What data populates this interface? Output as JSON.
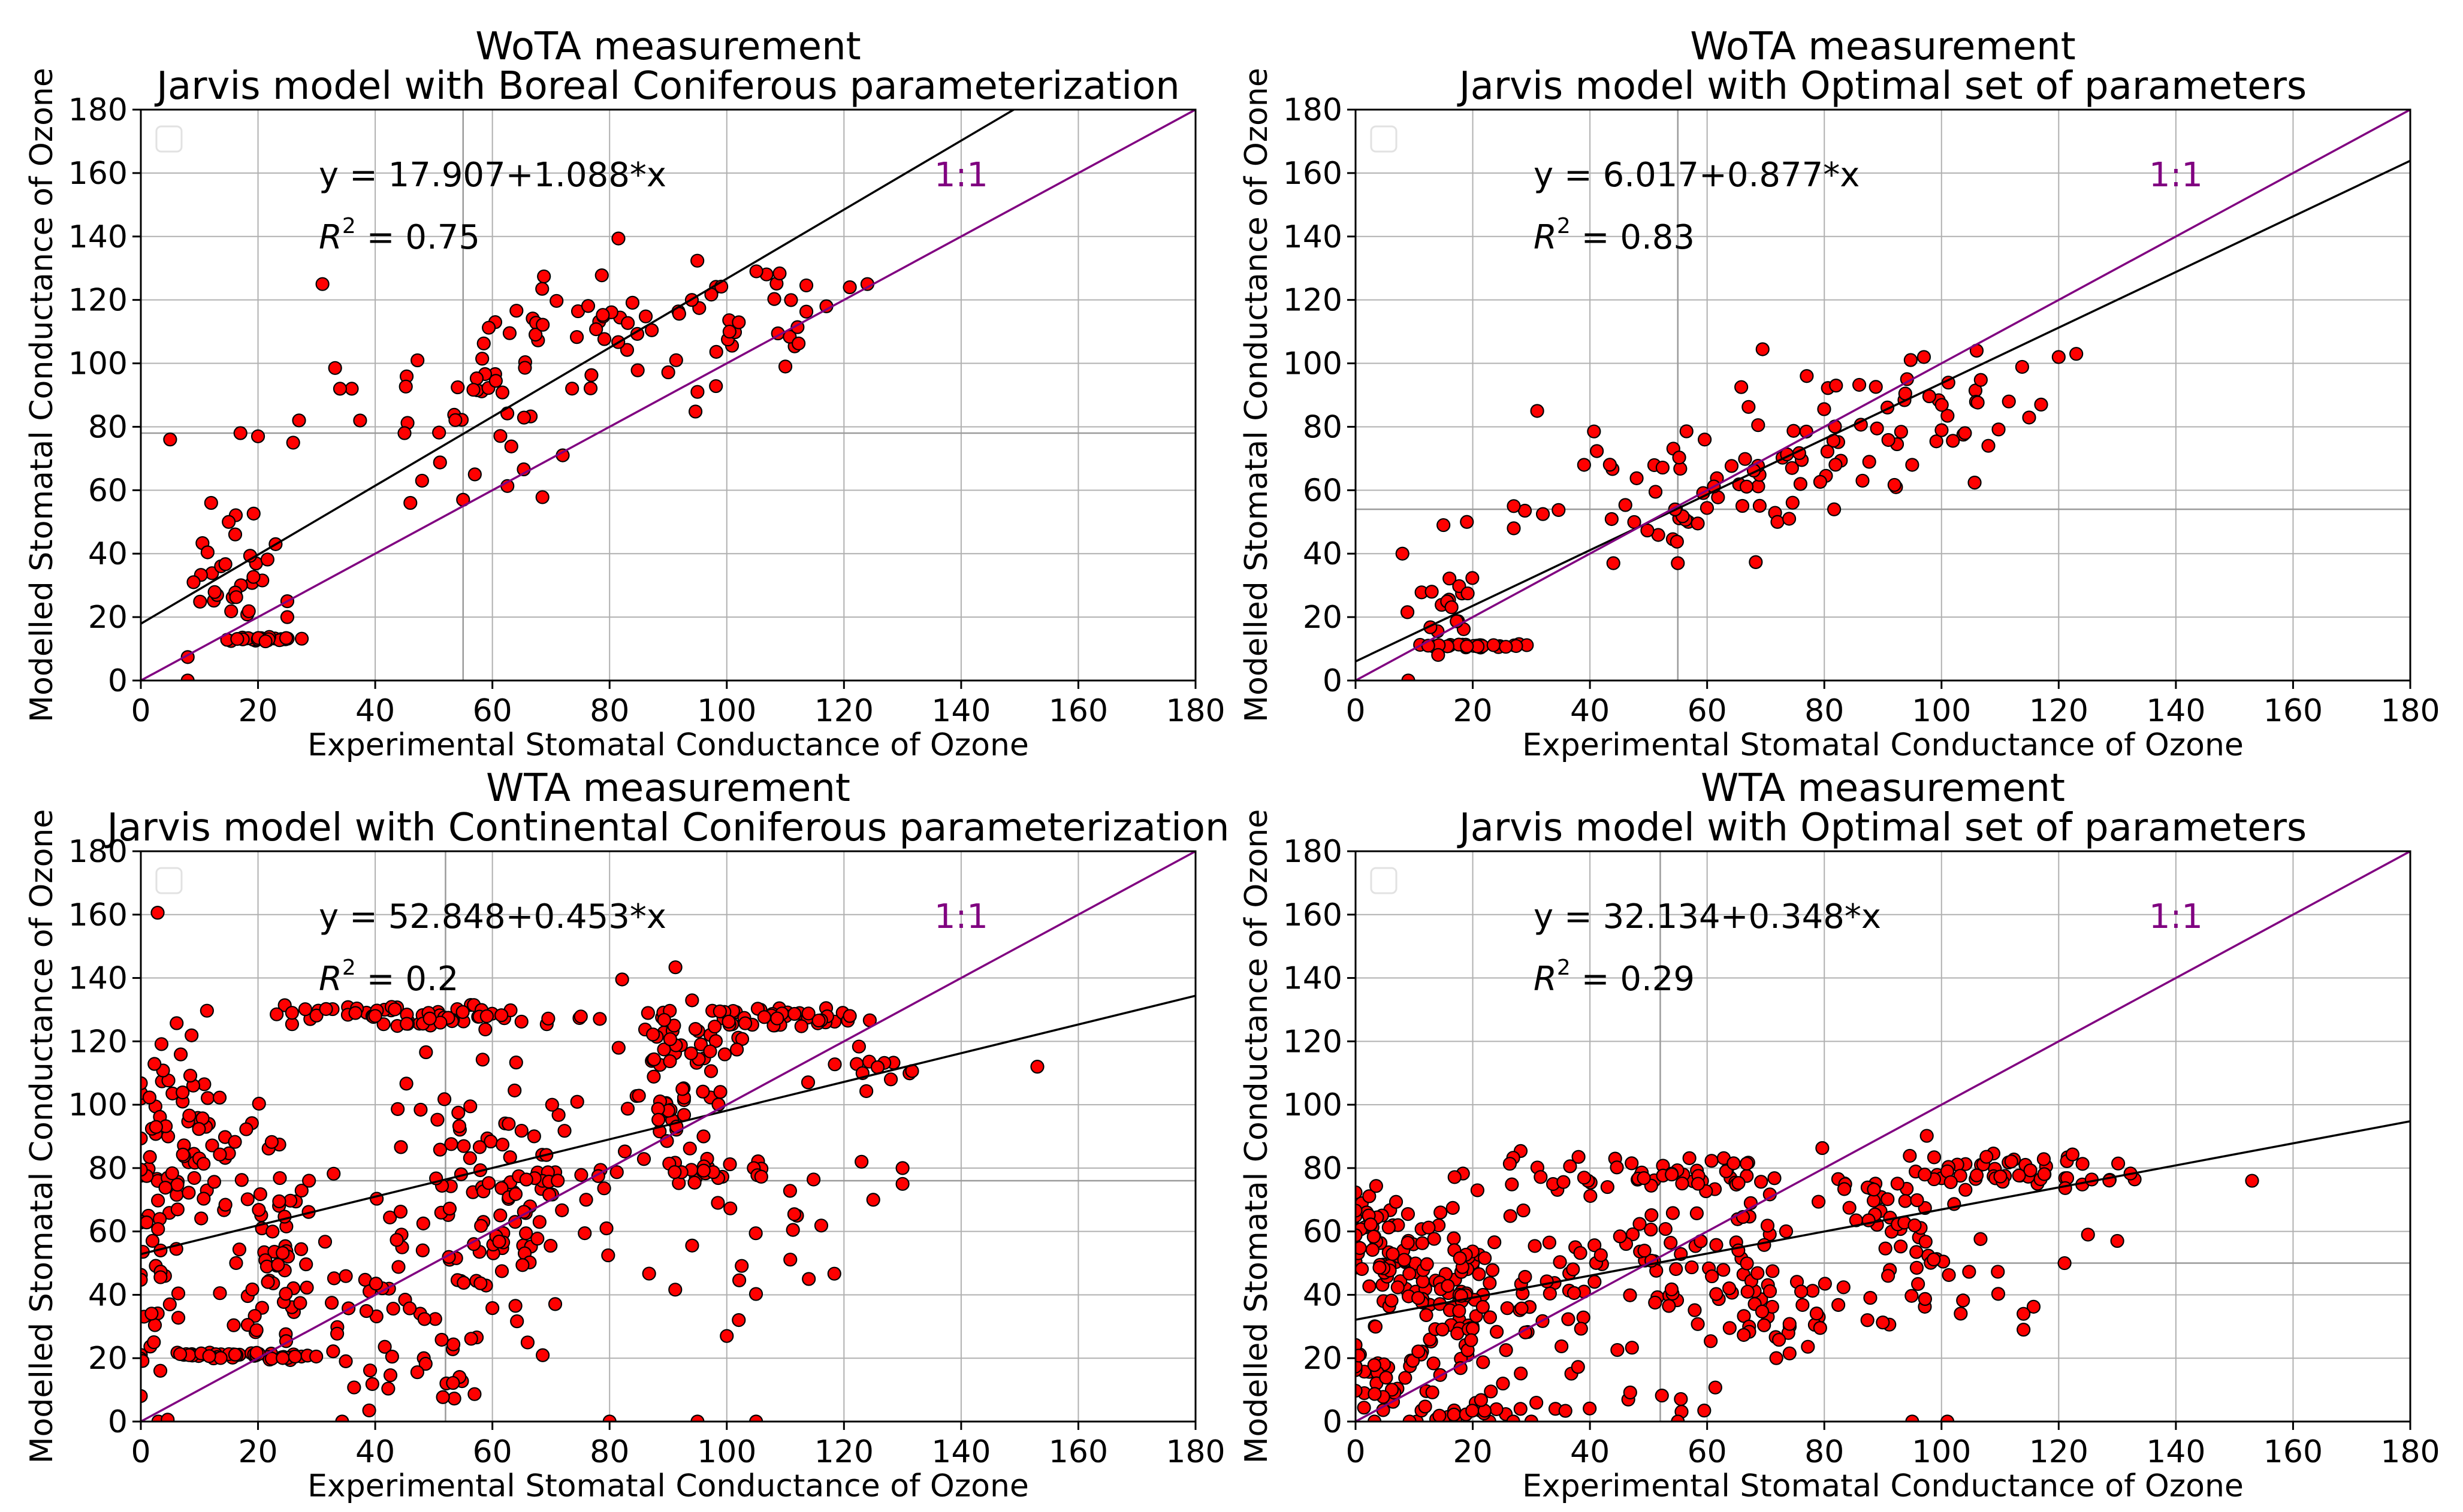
{
  "figure": {
    "point_color": "#ff0000",
    "fit_color": "#000000",
    "identity_color": "#800080"
  },
  "chart_data": [
    {
      "type": "scatter",
      "title_line1": "WoTA measurement",
      "title_line2": "Jarvis model with Boreal Coniferous parameterization",
      "xlabel": "Experimental Stomatal Conductance of Ozone",
      "ylabel": "Modelled Stomatal Conductance of Ozone",
      "xlim": [
        0,
        180
      ],
      "ylim": [
        0,
        180
      ],
      "xticks": [
        0,
        20,
        40,
        60,
        80,
        100,
        120,
        140,
        160,
        180
      ],
      "yticks": [
        0,
        20,
        40,
        60,
        80,
        100,
        120,
        140,
        160,
        180
      ],
      "fit": {
        "intercept": 17.907,
        "slope": 1.088
      },
      "equation_text": "y = 17.907+1.088*x",
      "r2_label": "R",
      "r2_value_text": " = 0.75",
      "identity_label": "1:1",
      "mean_x": 55,
      "mean_y": 78,
      "clusters": [
        {
          "cx": 20,
          "cy": 13,
          "sx": 4,
          "sy": 0.3,
          "n": 30,
          "comment": "floor band"
        },
        {
          "cx": 16,
          "cy": 35,
          "sx": 4,
          "sy": 10,
          "n": 28
        },
        {
          "cx": 62,
          "cy": 95,
          "sx": 12,
          "sy": 14,
          "n": 45
        },
        {
          "cx": 88,
          "cy": 112,
          "sx": 12,
          "sy": 10,
          "n": 40
        },
        {
          "cx": 107,
          "cy": 122,
          "sx": 6,
          "sy": 5,
          "n": 15
        }
      ],
      "points": [
        [
          5,
          76
        ],
        [
          8,
          0
        ],
        [
          9,
          31
        ],
        [
          25,
          20
        ],
        [
          31,
          125
        ],
        [
          36,
          92
        ],
        [
          45,
          78
        ],
        [
          48,
          63
        ],
        [
          55,
          57
        ],
        [
          57,
          65
        ],
        [
          72,
          71
        ],
        [
          95,
          91
        ],
        [
          110,
          99
        ],
        [
          117,
          118
        ],
        [
          121,
          124
        ],
        [
          124,
          125
        ],
        [
          20,
          77
        ],
        [
          17,
          78
        ],
        [
          27,
          82
        ],
        [
          26,
          75
        ],
        [
          46,
          56
        ],
        [
          34,
          92
        ],
        [
          12,
          56
        ],
        [
          15,
          50
        ],
        [
          23,
          43
        ],
        [
          25,
          25
        ]
      ]
    },
    {
      "type": "scatter",
      "title_line1": "WoTA measurement",
      "title_line2": "Jarvis model with Optimal set of parameters",
      "xlabel": "Experimental Stomatal Conductance of Ozone",
      "ylabel": "Modelled Stomatal Conductance of Ozone",
      "xlim": [
        0,
        180
      ],
      "ylim": [
        0,
        180
      ],
      "xticks": [
        0,
        20,
        40,
        60,
        80,
        100,
        120,
        140,
        160,
        180
      ],
      "yticks": [
        0,
        20,
        40,
        60,
        80,
        100,
        120,
        140,
        160,
        180
      ],
      "fit": {
        "intercept": 6.017,
        "slope": 0.877
      },
      "equation_text": "y = 6.017+0.877*x",
      "r2_label": "R",
      "r2_value_text": " = 0.83",
      "identity_label": "1:1",
      "mean_x": 55,
      "mean_y": 54,
      "clusters": [
        {
          "cx": 20,
          "cy": 11,
          "sx": 4,
          "sy": 0.3,
          "n": 30
        },
        {
          "cx": 16,
          "cy": 22,
          "sx": 3,
          "sy": 6,
          "n": 20
        },
        {
          "cx": 58,
          "cy": 58,
          "sx": 10,
          "sy": 9,
          "n": 45
        },
        {
          "cx": 82,
          "cy": 76,
          "sx": 12,
          "sy": 9,
          "n": 45
        },
        {
          "cx": 102,
          "cy": 90,
          "sx": 7,
          "sy": 8,
          "n": 15
        }
      ],
      "points": [
        [
          8,
          40
        ],
        [
          9,
          0
        ],
        [
          31,
          85
        ],
        [
          39,
          68
        ],
        [
          44,
          37
        ],
        [
          55,
          37
        ],
        [
          72,
          50
        ],
        [
          74,
          51
        ],
        [
          77,
          96
        ],
        [
          82,
          93
        ],
        [
          97,
          102
        ],
        [
          106,
          104
        ],
        [
          117,
          87
        ],
        [
          120,
          102
        ],
        [
          123,
          103
        ],
        [
          108,
          74
        ],
        [
          104,
          78
        ],
        [
          95,
          68
        ],
        [
          13,
          28
        ],
        [
          27,
          55
        ],
        [
          27,
          48
        ],
        [
          19,
          50
        ],
        [
          15,
          49
        ]
      ]
    },
    {
      "type": "scatter",
      "title_line1": "WTA measurement",
      "title_line2": "Jarvis model with Continental Coniferous parameterization",
      "xlabel": "Experimental Stomatal Conductance of Ozone",
      "ylabel": "Modelled Stomatal Conductance of Ozone",
      "xlim": [
        0,
        180
      ],
      "ylim": [
        0,
        180
      ],
      "xticks": [
        0,
        20,
        40,
        60,
        80,
        100,
        120,
        140,
        160,
        180
      ],
      "yticks": [
        0,
        20,
        40,
        60,
        80,
        100,
        120,
        140,
        160,
        180
      ],
      "fit": {
        "intercept": 52.848,
        "slope": 0.453
      },
      "equation_text": "y = 52.848+0.453*x",
      "r2_label": "R",
      "r2_value_text": " = 0.2",
      "identity_label": "1:1",
      "mean_x": 52,
      "mean_y": 76,
      "clusters": [
        {
          "cx": 16,
          "cy": 21,
          "sx": 7,
          "sy": 0.5,
          "n": 45
        },
        {
          "cx": 25,
          "cy": 20,
          "sx": 2,
          "sy": 0.5,
          "n": 8
        },
        {
          "cx": 3,
          "cy": 65,
          "sx": 3,
          "sy": 32,
          "n": 60
        },
        {
          "cx": 8,
          "cy": 95,
          "sx": 3,
          "sy": 12,
          "n": 30
        },
        {
          "cx": 22,
          "cy": 50,
          "sx": 4,
          "sy": 14,
          "n": 45
        },
        {
          "cx": 16,
          "cy": 78,
          "sx": 6,
          "sy": 10,
          "n": 30
        },
        {
          "cx": 50,
          "cy": 128,
          "sx": 14,
          "sy": 2,
          "n": 70
        },
        {
          "cx": 110,
          "cy": 127,
          "sx": 8,
          "sy": 2,
          "n": 45
        },
        {
          "cx": 92,
          "cy": 118,
          "sx": 5,
          "sy": 8,
          "n": 40
        },
        {
          "cx": 58,
          "cy": 60,
          "sx": 10,
          "sy": 20,
          "n": 80
        },
        {
          "cx": 68,
          "cy": 76,
          "sx": 5,
          "sy": 5,
          "n": 20
        },
        {
          "cx": 96,
          "cy": 80,
          "sx": 6,
          "sy": 3,
          "n": 25
        },
        {
          "cx": 92,
          "cy": 100,
          "sx": 5,
          "sy": 5,
          "n": 25
        },
        {
          "cx": 40,
          "cy": 40,
          "sx": 10,
          "sy": 15,
          "n": 30
        },
        {
          "cx": 103,
          "cy": 55,
          "sx": 8,
          "sy": 15,
          "n": 20
        },
        {
          "cx": 122,
          "cy": 110,
          "sx": 4,
          "sy": 5,
          "n": 12
        },
        {
          "cx": 55,
          "cy": 15,
          "sx": 10,
          "sy": 6,
          "n": 20
        },
        {
          "cx": 62,
          "cy": 96,
          "sx": 8,
          "sy": 10,
          "n": 20
        }
      ],
      "points": [
        [
          153,
          112
        ],
        [
          130,
          75
        ],
        [
          130,
          80
        ],
        [
          123,
          82
        ],
        [
          125,
          70
        ],
        [
          114,
          45
        ],
        [
          100,
          27
        ],
        [
          95,
          0
        ],
        [
          105,
          0
        ],
        [
          80,
          0
        ],
        [
          76,
          70
        ],
        [
          128,
          108
        ],
        [
          121,
          128
        ]
      ]
    },
    {
      "type": "scatter",
      "title_line1": "WTA measurement",
      "title_line2": "Jarvis model with Optimal set of parameters",
      "xlabel": "Experimental Stomatal Conductance of Ozone",
      "ylabel": "Modelled Stomatal Conductance of Ozone",
      "xlim": [
        0,
        180
      ],
      "ylim": [
        0,
        180
      ],
      "xticks": [
        0,
        20,
        40,
        60,
        80,
        100,
        120,
        140,
        160,
        180
      ],
      "yticks": [
        0,
        20,
        40,
        60,
        80,
        100,
        120,
        140,
        160,
        180
      ],
      "fit": {
        "intercept": 32.134,
        "slope": 0.348
      },
      "equation_text": "y = 32.134+0.348*x",
      "r2_label": "R",
      "r2_value_text": " = 0.29",
      "identity_label": "1:1",
      "mean_x": 52,
      "mean_y": 50,
      "clusters": [
        {
          "cx": 4,
          "cy": 55,
          "sx": 3,
          "sy": 10,
          "n": 60
        },
        {
          "cx": 4,
          "cy": 15,
          "sx": 3,
          "sy": 10,
          "n": 40
        },
        {
          "cx": 14,
          "cy": 48,
          "sx": 5,
          "sy": 10,
          "n": 50
        },
        {
          "cx": 20,
          "cy": 30,
          "sx": 5,
          "sy": 12,
          "n": 55
        },
        {
          "cx": 18,
          "cy": 3,
          "sx": 6,
          "sy": 2,
          "n": 20
        },
        {
          "cx": 50,
          "cy": 78,
          "sx": 14,
          "sy": 3,
          "n": 60
        },
        {
          "cx": 112,
          "cy": 79,
          "sx": 9,
          "sy": 3,
          "n": 50
        },
        {
          "cx": 92,
          "cy": 70,
          "sx": 6,
          "sy": 7,
          "n": 40
        },
        {
          "cx": 60,
          "cy": 50,
          "sx": 10,
          "sy": 10,
          "n": 60
        },
        {
          "cx": 70,
          "cy": 35,
          "sx": 8,
          "sy": 8,
          "n": 30
        },
        {
          "cx": 38,
          "cy": 45,
          "sx": 8,
          "sy": 10,
          "n": 30
        },
        {
          "cx": 100,
          "cy": 45,
          "sx": 8,
          "sy": 10,
          "n": 25
        },
        {
          "cx": 40,
          "cy": 8,
          "sx": 12,
          "sy": 6,
          "n": 15
        }
      ],
      "points": [
        [
          153,
          76
        ],
        [
          130,
          57
        ],
        [
          125,
          59
        ],
        [
          121,
          50
        ],
        [
          114,
          29
        ],
        [
          114,
          34
        ],
        [
          95,
          0
        ],
        [
          101,
          0
        ],
        [
          55,
          0
        ],
        [
          30,
          0
        ]
      ]
    }
  ]
}
